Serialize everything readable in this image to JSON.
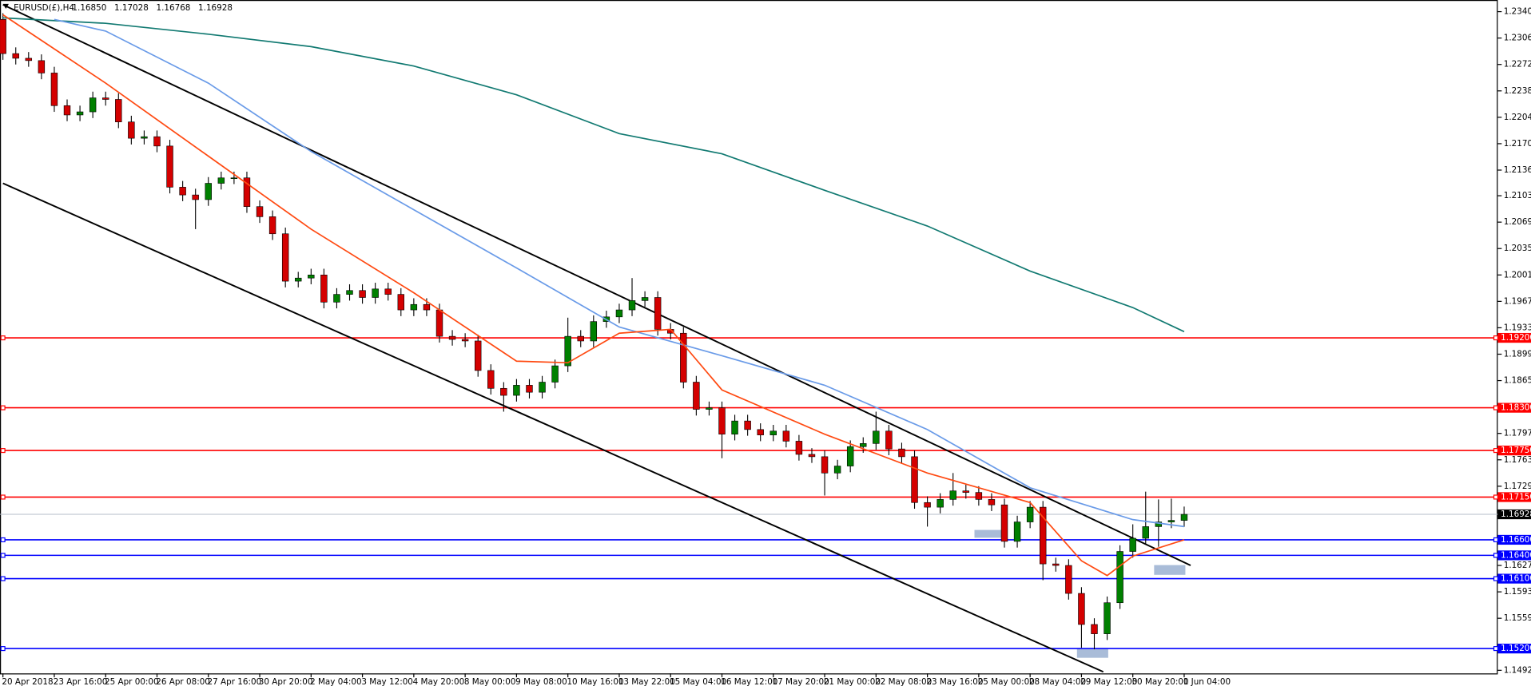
{
  "chart_data": {
    "type": "candlestick",
    "header": {
      "symbol": "EURUSD(£),H4",
      "ohlc": [
        {
          "value": 1.1685,
          "label": "1.16850"
        },
        {
          "value": 1.17028,
          "label": "1.17028"
        },
        {
          "value": 1.16768,
          "label": "1.16768"
        },
        {
          "value": 1.16928,
          "label": "1.16928"
        }
      ]
    },
    "categories": [
      "20 Apr 2018",
      null,
      null,
      null,
      "23 Apr 16:00",
      null,
      null,
      null,
      "25 Apr 00:00",
      null,
      null,
      null,
      "26 Apr 08:00",
      null,
      null,
      null,
      "27 Apr 16:00",
      null,
      null,
      null,
      "30 Apr 20:00",
      null,
      null,
      null,
      "2 May 04:00",
      null,
      null,
      null,
      "3 May 12:00",
      null,
      null,
      null,
      "4 May 20:00",
      null,
      null,
      null,
      "8 May 00:00",
      null,
      null,
      null,
      "9 May 08:00",
      null,
      null,
      null,
      "10 May 16:00",
      null,
      null,
      null,
      "13 May 22:00",
      null,
      null,
      null,
      "15 May 04:00",
      null,
      null,
      null,
      "16 May 12:00",
      null,
      null,
      null,
      "17 May 20:00",
      null,
      null,
      null,
      "21 May 00:00",
      null,
      null,
      null,
      "22 May 08:00",
      null,
      null,
      null,
      "23 May 16:00",
      null,
      null,
      null,
      "25 May 00:00",
      null,
      null,
      null,
      "28 May 04:00",
      null,
      null,
      null,
      "29 May 12:00",
      null,
      null,
      null,
      "30 May 20:00",
      null,
      null,
      null,
      "1 Jun 04:00"
    ],
    "open": [
      1.233,
      1.2286,
      1.228,
      1.2277,
      1.2261,
      1.2219,
      1.2207,
      1.2211,
      1.2229,
      1.2227,
      1.2198,
      1.2177,
      1.2179,
      1.2167,
      1.2114,
      1.2104,
      1.2098,
      1.2119,
      1.2126,
      1.2126,
      1.2089,
      1.2076,
      1.2054,
      1.1993,
      1.1997,
      1.2001,
      1.1966,
      1.1976,
      1.1981,
      1.1972,
      1.1983,
      1.1976,
      1.1956,
      1.1963,
      1.1956,
      1.1922,
      1.1918,
      1.1916,
      1.1878,
      1.1855,
      1.1846,
      1.1859,
      1.185,
      1.1863,
      1.1884,
      1.1922,
      1.1916,
      1.1941,
      1.1947,
      1.1956,
      1.1968,
      1.1972,
      1.1931,
      1.1926,
      1.1863,
      1.1828,
      1.183,
      1.1796,
      1.1813,
      1.1802,
      1.1795,
      1.18,
      1.1787,
      1.177,
      1.1767,
      1.1746,
      1.1755,
      1.178,
      1.1784,
      1.18,
      1.1777,
      1.1767,
      1.1708,
      1.1702,
      1.1712,
      1.1723,
      1.1721,
      1.1712,
      1.1705,
      1.1658,
      1.1683,
      1.1702,
      1.1629,
      1.1627,
      1.1591,
      1.1551,
      1.1539,
      1.1579,
      1.1645,
      1.1662,
      1.1677,
      1.1683,
      1.1685
    ],
    "high": [
      1.2338,
      1.2294,
      1.2288,
      1.2285,
      1.2269,
      1.2227,
      1.2219,
      1.2237,
      1.2237,
      1.2235,
      1.2206,
      1.2187,
      1.2187,
      1.2175,
      1.2122,
      1.2112,
      1.2127,
      1.2134,
      1.2134,
      1.2134,
      1.2097,
      1.2084,
      1.2062,
      1.2005,
      1.2009,
      1.2009,
      1.1984,
      1.1989,
      1.1989,
      1.1991,
      1.1991,
      1.1984,
      1.1971,
      1.1971,
      1.1964,
      1.193,
      1.1926,
      1.1924,
      1.1886,
      1.1863,
      1.1867,
      1.1867,
      1.1871,
      1.1892,
      1.1946,
      1.193,
      1.1949,
      1.1955,
      1.1964,
      1.1997,
      1.198,
      1.198,
      1.1939,
      1.1934,
      1.1871,
      1.1838,
      1.1838,
      1.1821,
      1.1821,
      1.181,
      1.1808,
      1.1808,
      1.1795,
      1.1778,
      1.1775,
      1.1763,
      1.1788,
      1.1792,
      1.1825,
      1.1808,
      1.1785,
      1.1775,
      1.1716,
      1.172,
      1.1746,
      1.1731,
      1.1729,
      1.172,
      1.1713,
      1.1691,
      1.171,
      1.171,
      1.1637,
      1.1635,
      1.1599,
      1.1559,
      1.1587,
      1.1653,
      1.168,
      1.1722,
      1.1712,
      1.1713,
      1.17028
    ],
    "low": [
      1.2278,
      1.2272,
      1.2269,
      1.2253,
      1.2211,
      1.2199,
      1.2199,
      1.2203,
      1.2219,
      1.219,
      1.2169,
      1.2169,
      1.2159,
      1.2106,
      1.2096,
      1.206,
      1.209,
      1.2111,
      1.2118,
      1.2081,
      1.2068,
      1.2046,
      1.1985,
      1.1985,
      1.1989,
      1.1958,
      1.1958,
      1.1968,
      1.1964,
      1.1964,
      1.1968,
      1.1948,
      1.1948,
      1.1948,
      1.1914,
      1.191,
      1.1908,
      1.187,
      1.1847,
      1.1825,
      1.1838,
      1.1842,
      1.1842,
      1.1855,
      1.1876,
      1.1908,
      1.1908,
      1.1933,
      1.1939,
      1.1948,
      1.196,
      1.1923,
      1.1918,
      1.1855,
      1.182,
      1.182,
      1.1765,
      1.1788,
      1.1794,
      1.1787,
      1.1787,
      1.1779,
      1.1762,
      1.1759,
      1.1717,
      1.1738,
      1.1747,
      1.1772,
      1.1776,
      1.1769,
      1.1759,
      1.17,
      1.1677,
      1.1694,
      1.1704,
      1.1713,
      1.1704,
      1.1697,
      1.165,
      1.165,
      1.1675,
      1.1608,
      1.1619,
      1.1583,
      1.1521,
      1.1519,
      1.1531,
      1.1571,
      1.1637,
      1.1654,
      1.1651,
      1.1675,
      1.16768
    ],
    "close": [
      1.2286,
      1.228,
      1.2277,
      1.2261,
      1.2219,
      1.2207,
      1.2211,
      1.2229,
      1.2227,
      1.2198,
      1.2177,
      1.2179,
      1.2167,
      1.2114,
      1.2104,
      1.2098,
      1.2119,
      1.2126,
      1.2126,
      1.2089,
      1.2076,
      1.2054,
      1.1993,
      1.1997,
      1.2001,
      1.1966,
      1.1976,
      1.1981,
      1.1972,
      1.1983,
      1.1976,
      1.1956,
      1.1963,
      1.1956,
      1.1922,
      1.1918,
      1.1916,
      1.1878,
      1.1855,
      1.1846,
      1.1859,
      1.185,
      1.1863,
      1.1884,
      1.1922,
      1.1916,
      1.1941,
      1.1947,
      1.1956,
      1.1968,
      1.1972,
      1.1931,
      1.1926,
      1.1863,
      1.1828,
      1.183,
      1.1796,
      1.1813,
      1.1802,
      1.1795,
      1.18,
      1.1787,
      1.177,
      1.1767,
      1.1746,
      1.1755,
      1.178,
      1.1784,
      1.18,
      1.1777,
      1.1767,
      1.1708,
      1.1702,
      1.1712,
      1.1723,
      1.1721,
      1.1712,
      1.1705,
      1.1658,
      1.1683,
      1.1702,
      1.1629,
      1.1627,
      1.1591,
      1.1551,
      1.1539,
      1.1579,
      1.1645,
      1.1662,
      1.1677,
      1.1683,
      1.1685,
      1.16928
    ],
    "up_color": "#008000",
    "down_color": "#d40000",
    "lines": [
      {
        "color": "#127a72",
        "x": [
          0,
          8,
          16,
          24,
          32,
          40,
          48,
          56,
          64,
          72,
          80,
          88,
          92
        ],
        "values": [
          1.2332,
          1.2325,
          1.2311,
          1.2295,
          1.227,
          1.2233,
          1.2183,
          1.2157,
          1.211,
          1.2064,
          1.2006,
          1.1959,
          1.1928
        ]
      },
      {
        "color": "#6a9be8",
        "x": [
          4,
          8,
          16,
          24,
          32,
          40,
          48,
          56,
          64,
          72,
          80,
          88,
          92
        ],
        "values": [
          1.233,
          1.2315,
          1.2248,
          1.216,
          1.2085,
          1.201,
          1.1934,
          1.1897,
          1.1859,
          1.1802,
          1.1727,
          1.1686,
          1.1677
        ]
      },
      {
        "color": "#ff4a12",
        "x": [
          0,
          4,
          8,
          16,
          24,
          32,
          40,
          44,
          48,
          52,
          56,
          64,
          72,
          80,
          84,
          86,
          88,
          92
        ],
        "values": [
          1.2336,
          1.2292,
          1.2248,
          1.2154,
          1.206,
          1.1978,
          1.189,
          1.1888,
          1.1926,
          1.1931,
          1.1853,
          1.1796,
          1.1746,
          1.1708,
          1.1633,
          1.1614,
          1.1639,
          1.166
        ]
      }
    ],
    "trendlines": [
      {
        "color": "#000000",
        "x": [
          0,
          92.5
        ],
        "values": [
          1.2349,
          1.1627
        ]
      },
      {
        "color": "#000000",
        "x": [
          0,
          85.7
        ],
        "values": [
          1.2119,
          1.149
        ]
      }
    ],
    "levels": [
      {
        "value": 1.192,
        "label": "1.19200",
        "color": "#ff0000"
      },
      {
        "value": 1.183,
        "label": "1.18300",
        "color": "#ff0000"
      },
      {
        "value": 1.1775,
        "label": "1.17750",
        "color": "#ff0000"
      },
      {
        "value": 1.1715,
        "label": "1.17150",
        "color": "#ff0000"
      },
      {
        "value": 1.166,
        "label": "1.16600",
        "color": "#0000ff"
      },
      {
        "value": 1.164,
        "label": "1.16400",
        "color": "#0000ff"
      },
      {
        "value": 1.161,
        "label": "1.16100",
        "color": "#0000ff"
      },
      {
        "value": 1.152,
        "label": "1.15200",
        "color": "#0000ff"
      }
    ],
    "current_price": {
      "value": 1.16928,
      "label": "1.16928"
    },
    "ylim": [
      1.1488,
      1.2355
    ],
    "yticks": [
      {
        "value": 1.234,
        "label": "1.23400"
      },
      {
        "value": 1.2306,
        "label": "1.23060"
      },
      {
        "value": 1.2272,
        "label": "1.22720"
      },
      {
        "value": 1.2238,
        "label": "1.22380"
      },
      {
        "value": 1.2204,
        "label": "1.22040"
      },
      {
        "value": 1.217,
        "label": "1.21700"
      },
      {
        "value": 1.2136,
        "label": "1.21360"
      },
      {
        "value": 1.2103,
        "label": "1.21030"
      },
      {
        "value": 1.2069,
        "label": "1.20690"
      },
      {
        "value": 1.2035,
        "label": "1.20350"
      },
      {
        "value": 1.2001,
        "label": "1.20010"
      },
      {
        "value": 1.1967,
        "label": "1.19670"
      },
      {
        "value": 1.1933,
        "label": "1.19330"
      },
      {
        "value": 1.1899,
        "label": "1.18990"
      },
      {
        "value": 1.1865,
        "label": "1.18650"
      },
      {
        "value": 1.1797,
        "label": "1.17970"
      },
      {
        "value": 1.1763,
        "label": "1.17630"
      },
      {
        "value": 1.1729,
        "label": "1.17290"
      },
      {
        "value": 1.1627,
        "label": "1.16270"
      },
      {
        "value": 1.1593,
        "label": "1.15930"
      },
      {
        "value": 1.1559,
        "label": "1.15590"
      },
      {
        "value": 1.1492,
        "label": "1.14920"
      }
    ]
  }
}
